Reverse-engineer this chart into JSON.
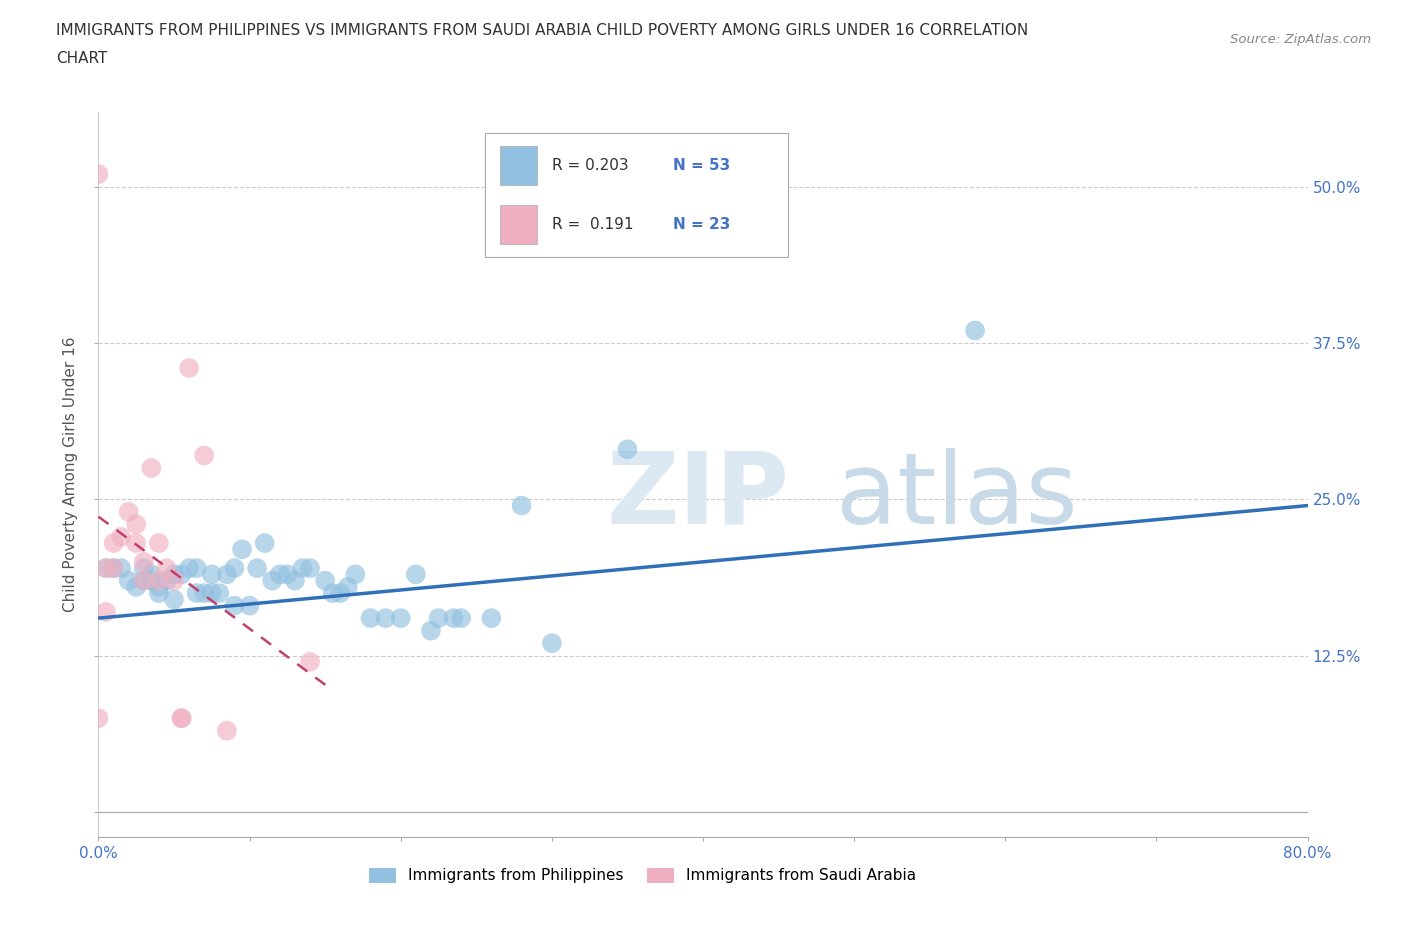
{
  "title": "IMMIGRANTS FROM PHILIPPINES VS IMMIGRANTS FROM SAUDI ARABIA CHILD POVERTY AMONG GIRLS UNDER 16 CORRELATION\nCHART",
  "source": "Source: ZipAtlas.com",
  "ylabel": "Child Poverty Among Girls Under 16",
  "xlim": [
    0.0,
    0.8
  ],
  "ylim": [
    -0.02,
    0.56
  ],
  "xticks": [
    0.0,
    0.1,
    0.2,
    0.3,
    0.4,
    0.5,
    0.6,
    0.7,
    0.8
  ],
  "xticklabels": [
    "0.0%",
    "",
    "",
    "",
    "",
    "",
    "",
    "",
    "80.0%"
  ],
  "ytick_positions": [
    0.0,
    0.125,
    0.25,
    0.375,
    0.5
  ],
  "ytick_labels": [
    "",
    "12.5%",
    "25.0%",
    "37.5%",
    "50.0%"
  ],
  "blue_R": "0.203",
  "blue_N": "53",
  "pink_R": "0.191",
  "pink_N": "23",
  "blue_color": "#92c0e0",
  "pink_color": "#f0afc0",
  "trendline_blue_color": "#3070b8",
  "trendline_pink_color": "#c04070",
  "watermark_zip": "ZIP",
  "watermark_atlas": "atlas",
  "blue_scatter_x": [
    0.005,
    0.01,
    0.015,
    0.02,
    0.025,
    0.03,
    0.03,
    0.035,
    0.035,
    0.04,
    0.04,
    0.045,
    0.05,
    0.05,
    0.055,
    0.06,
    0.065,
    0.065,
    0.07,
    0.075,
    0.075,
    0.08,
    0.085,
    0.09,
    0.09,
    0.095,
    0.1,
    0.105,
    0.11,
    0.115,
    0.12,
    0.125,
    0.13,
    0.135,
    0.14,
    0.15,
    0.155,
    0.16,
    0.165,
    0.17,
    0.18,
    0.19,
    0.2,
    0.21,
    0.22,
    0.225,
    0.235,
    0.24,
    0.26,
    0.28,
    0.3,
    0.35,
    0.58
  ],
  "blue_scatter_y": [
    0.195,
    0.195,
    0.195,
    0.185,
    0.18,
    0.195,
    0.185,
    0.185,
    0.19,
    0.175,
    0.18,
    0.185,
    0.17,
    0.19,
    0.19,
    0.195,
    0.175,
    0.195,
    0.175,
    0.175,
    0.19,
    0.175,
    0.19,
    0.165,
    0.195,
    0.21,
    0.165,
    0.195,
    0.215,
    0.185,
    0.19,
    0.19,
    0.185,
    0.195,
    0.195,
    0.185,
    0.175,
    0.175,
    0.18,
    0.19,
    0.155,
    0.155,
    0.155,
    0.19,
    0.145,
    0.155,
    0.155,
    0.155,
    0.155,
    0.245,
    0.135,
    0.29,
    0.385
  ],
  "pink_scatter_x": [
    0.0,
    0.0,
    0.005,
    0.005,
    0.01,
    0.01,
    0.015,
    0.02,
    0.025,
    0.025,
    0.03,
    0.03,
    0.035,
    0.04,
    0.04,
    0.045,
    0.05,
    0.055,
    0.055,
    0.06,
    0.07,
    0.085,
    0.14
  ],
  "pink_scatter_y": [
    0.51,
    0.075,
    0.16,
    0.195,
    0.195,
    0.215,
    0.22,
    0.24,
    0.215,
    0.23,
    0.185,
    0.2,
    0.275,
    0.185,
    0.215,
    0.195,
    0.185,
    0.075,
    0.075,
    0.355,
    0.285,
    0.065,
    0.12
  ],
  "legend_label_blue": "Immigrants from Philippines",
  "legend_label_pink": "Immigrants from Saudi Arabia",
  "blue_trend_x0": 0.0,
  "blue_trend_y0": 0.155,
  "blue_trend_x1": 0.8,
  "blue_trend_y1": 0.245,
  "pink_trend_x0": 0.0,
  "pink_trend_y0": 0.235,
  "pink_trend_x1": 0.14,
  "pink_trend_y1": 0.155
}
